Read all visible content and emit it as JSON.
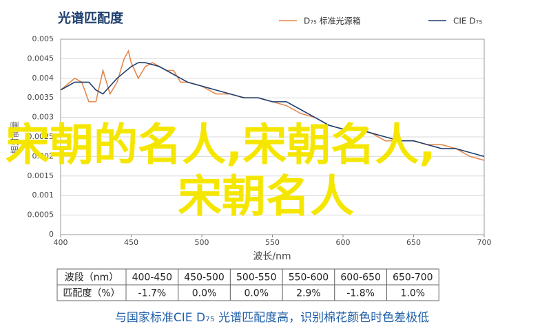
{
  "chart_data": {
    "type": "line",
    "title": "光谱匹配度",
    "x_label": "波长/nm",
    "y_label": "相对能量",
    "xlim": [
      400,
      700
    ],
    "xticks": [
      400,
      450,
      500,
      550,
      600,
      650,
      700
    ],
    "ylim": [
      0,
      0.005
    ],
    "yticks": [
      0,
      0.0005,
      0.001,
      0.0015,
      0.002,
      0.0025,
      0.003,
      0.0035,
      0.004,
      0.0045,
      0.005
    ],
    "grid": true,
    "series": [
      {
        "name": "D₇₅ 标准光源箱",
        "color": "#e5874a",
        "x": [
          400,
          410,
          415,
          420,
          425,
          430,
          435,
          440,
          445,
          448,
          450,
          455,
          460,
          465,
          470,
          475,
          480,
          485,
          490,
          500,
          510,
          520,
          530,
          540,
          550,
          560,
          570,
          580,
          590,
          600,
          610,
          620,
          630,
          640,
          650,
          660,
          670,
          680,
          690,
          700
        ],
        "values": [
          0.0037,
          0.004,
          0.0039,
          0.0034,
          0.0034,
          0.0042,
          0.0036,
          0.0039,
          0.0045,
          0.0047,
          0.0044,
          0.004,
          0.0043,
          0.0044,
          0.0043,
          0.0042,
          0.0042,
          0.0039,
          0.0039,
          0.0038,
          0.0036,
          0.0036,
          0.0035,
          0.0035,
          0.0034,
          0.0033,
          0.0031,
          0.003,
          0.0028,
          0.0027,
          0.0027,
          0.0026,
          0.0024,
          0.0024,
          0.0024,
          0.0023,
          0.0023,
          0.0022,
          0.002,
          0.0019
        ]
      },
      {
        "name": "CIE D₇₅",
        "color": "#1f3f6e",
        "x": [
          400,
          410,
          420,
          425,
          430,
          440,
          450,
          455,
          460,
          470,
          480,
          490,
          500,
          510,
          520,
          530,
          540,
          550,
          560,
          570,
          580,
          590,
          600,
          610,
          620,
          630,
          640,
          650,
          660,
          670,
          680,
          690,
          700
        ],
        "values": [
          0.0037,
          0.0039,
          0.0039,
          0.0037,
          0.0036,
          0.004,
          0.0043,
          0.0044,
          0.0044,
          0.0043,
          0.0041,
          0.0039,
          0.0038,
          0.0037,
          0.0036,
          0.0035,
          0.0035,
          0.0034,
          0.0034,
          0.0032,
          0.003,
          0.0028,
          0.0027,
          0.0027,
          0.0026,
          0.0025,
          0.0024,
          0.0024,
          0.0023,
          0.0022,
          0.0022,
          0.0021,
          0.002
        ]
      }
    ]
  },
  "table": {
    "rows": [
      [
        "波段（nm）",
        "400-450",
        "450-500",
        "500-550",
        "550-600",
        "600-650",
        "650-700"
      ],
      [
        "匹配度（%）",
        "-1.7%",
        "0.0%",
        "0.0%",
        "2.9%",
        "-1.8%",
        "1.0%"
      ]
    ]
  },
  "caption": "与国家标准CIE D₇₅ 光谱匹配度高，识别棉花颜色时色差极低",
  "overlay": [
    "宋朝的名人,宋朝名人,",
    "宋朝名人"
  ]
}
